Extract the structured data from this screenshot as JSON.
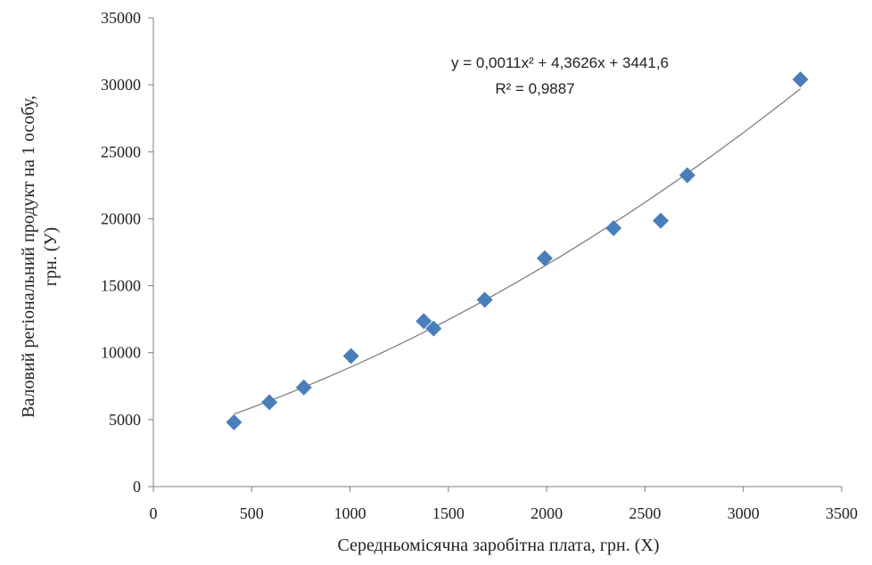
{
  "chart_data": {
    "type": "scatter",
    "title": "",
    "xlabel": "Середньомісячна заробітна плата, грн. (Х)",
    "ylabel_line1": "Валовий регіональний продукт на 1 особу,",
    "ylabel_line2": "грн. (У)",
    "xlim": [
      0,
      3500
    ],
    "ylim": [
      0,
      35000
    ],
    "xticks": [
      0,
      500,
      1000,
      1500,
      2000,
      2500,
      3000,
      3500
    ],
    "yticks": [
      0,
      5000,
      10000,
      15000,
      20000,
      25000,
      30000,
      35000
    ],
    "x_tick_labels": [
      "0",
      "500",
      "1000",
      "1500",
      "2000",
      "2500",
      "3000",
      "3500"
    ],
    "y_tick_labels": [
      "0",
      "5000",
      "10000",
      "15000",
      "20000",
      "25000",
      "30000",
      "35000"
    ],
    "grid": false,
    "legend": "none",
    "marker": "diamond",
    "marker_color": "#4a7ebb",
    "trend_color": "#808080",
    "points": [
      {
        "x": 410,
        "y": 4800
      },
      {
        "x": 590,
        "y": 6300
      },
      {
        "x": 765,
        "y": 7400
      },
      {
        "x": 1005,
        "y": 9750
      },
      {
        "x": 1375,
        "y": 12350
      },
      {
        "x": 1425,
        "y": 11800
      },
      {
        "x": 1685,
        "y": 13950
      },
      {
        "x": 1990,
        "y": 17050
      },
      {
        "x": 2340,
        "y": 19300
      },
      {
        "x": 2580,
        "y": 19850
      },
      {
        "x": 2715,
        "y": 23250
      },
      {
        "x": 3290,
        "y": 30400
      }
    ],
    "trendline": {
      "type": "polynomial",
      "coefficients": {
        "a": 0.0011,
        "b": 4.3626,
        "c": 3441.6
      },
      "x_range": [
        410,
        3290
      ],
      "equation_label": "y = 0,0011x² + 4,3626x + 3441,6",
      "r2_label": "R² = 0,9887"
    }
  }
}
